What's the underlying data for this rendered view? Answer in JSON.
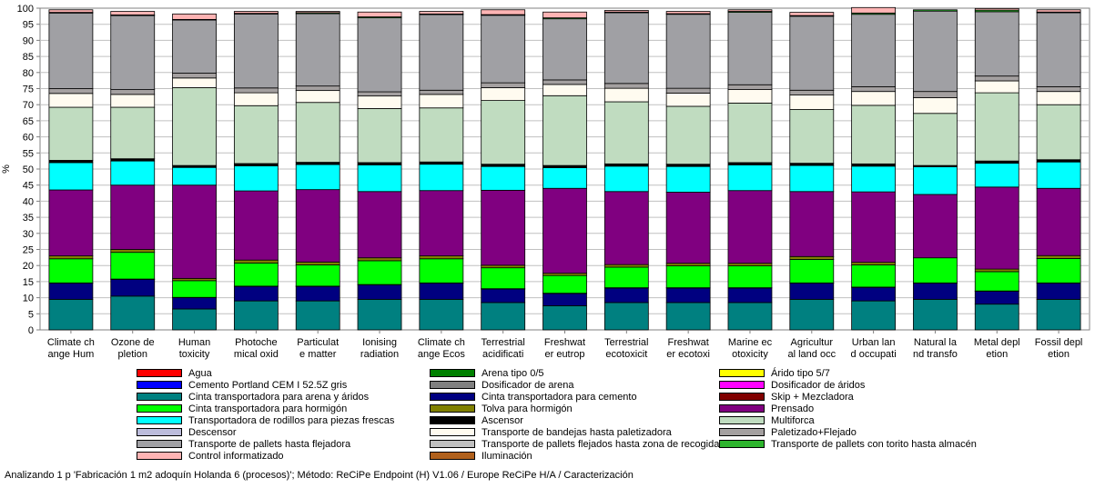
{
  "chart_data": {
    "type": "stacked-bar",
    "ylabel": "%",
    "ylim": [
      0,
      100
    ],
    "yticks": [
      0,
      5,
      10,
      15,
      20,
      25,
      30,
      35,
      40,
      45,
      50,
      55,
      60,
      65,
      70,
      75,
      80,
      85,
      90,
      95,
      100
    ],
    "grid": true,
    "legend_position": "bottom",
    "categories": [
      [
        "Climate ch",
        "ange Hum"
      ],
      [
        "Ozone de",
        "pletion"
      ],
      [
        "Human",
        "toxicity"
      ],
      [
        "Photoche",
        "mical oxid"
      ],
      [
        "Particulat",
        "e matter"
      ],
      [
        "Ionising",
        "radiation"
      ],
      [
        "Climate ch",
        "ange Ecos"
      ],
      [
        "Terrestrial",
        "acidificati"
      ],
      [
        "Freshwat",
        "er eutrop"
      ],
      [
        "Terrestrial",
        "ecotoxicit"
      ],
      [
        "Freshwat",
        "er ecotoxi"
      ],
      [
        "Marine ec",
        "otoxicity"
      ],
      [
        "Agricultur",
        "al land occ"
      ],
      [
        "Urban lan",
        "d occupati"
      ],
      [
        "Natural la",
        "nd transfo"
      ],
      [
        "Metal depl",
        "etion"
      ],
      [
        "Fossil depl",
        "etion"
      ]
    ],
    "series": [
      {
        "name": "Agua",
        "color": "#ff0000",
        "values": [
          0,
          0,
          0,
          0,
          0,
          0,
          0,
          0,
          0,
          0,
          0,
          0,
          0,
          0,
          0,
          0,
          0
        ]
      },
      {
        "name": "Arena tipo 0/5",
        "color": "#008000",
        "values": [
          0,
          0,
          0,
          0,
          0,
          0,
          0,
          0,
          0,
          0,
          0,
          0,
          0,
          0,
          0,
          0,
          0
        ]
      },
      {
        "name": "Árido tipo 5/7",
        "color": "#ffff00",
        "values": [
          0,
          0,
          0,
          0,
          0,
          0,
          0,
          0,
          0,
          0,
          0,
          0,
          0,
          0,
          0,
          0,
          0
        ]
      },
      {
        "name": "Cemento Portland CEM I 52.5Z gris",
        "color": "#0000ff",
        "values": [
          0,
          0,
          0,
          0,
          0,
          0,
          0,
          0,
          0,
          0,
          0,
          0,
          0,
          0,
          0,
          0,
          0
        ]
      },
      {
        "name": "Dosificador de arena",
        "color": "#808080",
        "values": [
          0,
          0,
          0,
          0,
          0,
          0,
          0,
          0,
          0,
          0,
          0,
          0,
          0,
          0,
          0,
          0,
          0
        ]
      },
      {
        "name": "Dosificador de áridos",
        "color": "#ff00ff",
        "values": [
          0,
          0,
          0,
          0,
          0,
          0,
          0,
          0,
          0,
          0,
          0,
          0,
          0,
          0,
          0,
          0,
          0
        ]
      },
      {
        "name": "Cinta transportadora para arena y áridos",
        "color": "#008080",
        "values": [
          9.5,
          10.5,
          6.5,
          9,
          9,
          9.5,
          9.5,
          8.5,
          7.5,
          8.5,
          8.5,
          8.5,
          9.5,
          9,
          9.5,
          8,
          9.5
        ]
      },
      {
        "name": "Cinta transportadora para cemento",
        "color": "#000080",
        "values": [
          5,
          5.2,
          3.5,
          4.5,
          4.5,
          4.5,
          5,
          4.2,
          3.8,
          4.5,
          4.5,
          4.5,
          5,
          4.2,
          5,
          4,
          5
        ]
      },
      {
        "name": "Skip + Mezcladora",
        "color": "#800000",
        "values": [
          0.1,
          0.1,
          0.1,
          0.1,
          0.1,
          0.1,
          0.1,
          0.1,
          0.1,
          0.1,
          0.1,
          0.1,
          0.1,
          0.1,
          0.1,
          0.1,
          0.1
        ]
      },
      {
        "name": "Cinta transportadora para hormigón",
        "color": "#00ff00",
        "values": [
          7.5,
          8.3,
          5.2,
          7.2,
          6.6,
          7.4,
          7.5,
          6.5,
          5.5,
          6.4,
          6.8,
          6.8,
          7.3,
          6.9,
          7.8,
          6,
          7.6
        ]
      },
      {
        "name": "Tolva para hormigón",
        "color": "#808000",
        "values": [
          0.9,
          0.9,
          0.7,
          0.9,
          0.9,
          0.9,
          0.9,
          0.8,
          0.7,
          0.8,
          0.8,
          0.8,
          0.9,
          0.8,
          0,
          0.8,
          0.9
        ]
      },
      {
        "name": "Prensado",
        "color": "#800080",
        "values": [
          20.5,
          20,
          29,
          21.5,
          22.5,
          20.6,
          20.3,
          23.3,
          26.4,
          22.7,
          22.1,
          22.6,
          20.2,
          21.9,
          19.7,
          25.5,
          20.9
        ]
      },
      {
        "name": "Transportadora de rodillos para piezas frescas",
        "color": "#00ffff",
        "values": [
          8.5,
          7.5,
          5.5,
          7.8,
          7.8,
          8.3,
          8.2,
          7.4,
          6.4,
          7.9,
          8,
          8,
          8.1,
          8,
          8.6,
          7.4,
          8.2
        ]
      },
      {
        "name": "Ascensor",
        "color": "#000000",
        "values": [
          0.7,
          0.7,
          0.6,
          0.7,
          0.7,
          0.7,
          0.7,
          0.7,
          0.7,
          0.7,
          0.7,
          0.7,
          0.7,
          0.7,
          0.4,
          0.7,
          0.7
        ]
      },
      {
        "name": "Multiforca",
        "color": "#c0dcc0",
        "values": [
          16.5,
          16,
          24.2,
          18,
          18.6,
          16.8,
          16.8,
          19.8,
          21.7,
          19.3,
          18,
          18.5,
          16.7,
          18.2,
          16.2,
          21.2,
          17.1
        ]
      },
      {
        "name": "Descensor",
        "color": "#bcbcdc",
        "values": [
          0,
          0,
          0,
          0,
          0,
          0,
          0,
          0,
          0,
          0,
          0,
          0,
          0,
          0,
          0,
          0,
          0
        ]
      },
      {
        "name": "Transporte de bandejas hasta paletizadora",
        "color": "#fffbf0",
        "values": [
          4.3,
          4,
          3,
          4,
          3.7,
          3.9,
          4.2,
          4,
          3.5,
          4.2,
          4.1,
          4.2,
          4.5,
          4.3,
          4.9,
          3.7,
          4.1
        ]
      },
      {
        "name": "Paletizado+Flejado",
        "color": "#a4a0a0",
        "values": [
          1.5,
          1.5,
          1.5,
          1.5,
          1.4,
          1.3,
          1.3,
          1.5,
          1.4,
          1.5,
          1.5,
          1.5,
          1.5,
          1.5,
          1.9,
          1.5,
          1.5
        ]
      },
      {
        "name": "Transporte de pallets hasta flejadora",
        "color": "#a0a0a4",
        "values": [
          23.5,
          23,
          16.5,
          23,
          22.5,
          23,
          23.5,
          21,
          19,
          22,
          23,
          22.5,
          23,
          22.5,
          25,
          20,
          23
        ]
      },
      {
        "name": "Transporte de pallets flejados hasta zona de recogida",
        "color": "#c0c0c0",
        "values": [
          0,
          0,
          0,
          0,
          0,
          0,
          0,
          0,
          0,
          0,
          0,
          0,
          0,
          0,
          0,
          0,
          0
        ]
      },
      {
        "name": "Transporte de pallets con torito hasta almacén",
        "color": "#2db52d",
        "values": [
          0.2,
          0.2,
          0.2,
          0.2,
          0.3,
          0.3,
          0.2,
          0.2,
          0.3,
          0.2,
          0.2,
          0.3,
          0.2,
          0.4,
          0.4,
          0.5,
          0.2
        ]
      },
      {
        "name": "Control informatizado",
        "color": "#ffb4b4",
        "values": [
          0.8,
          1.1,
          1.7,
          0.6,
          0.4,
          1.5,
          0.8,
          1.5,
          1.8,
          0.5,
          0.7,
          0.5,
          1,
          1.7,
          0,
          0.5,
          0.7
        ]
      },
      {
        "name": "Iluminación",
        "color": "#b0601c",
        "values": [
          0,
          0,
          0,
          0,
          0,
          0,
          0,
          0,
          0,
          0,
          0,
          0,
          0,
          0,
          0,
          0,
          0
        ]
      }
    ]
  },
  "legend": [
    {
      "label": "Agua",
      "color": "#ff0000"
    },
    {
      "label": "Arena tipo 0/5",
      "color": "#008000"
    },
    {
      "label": "Árido tipo 5/7",
      "color": "#ffff00"
    },
    {
      "label": "Cemento Portland CEM I 52.5Z gris",
      "color": "#0000ff"
    },
    {
      "label": "Dosificador de arena",
      "color": "#808080"
    },
    {
      "label": "Dosificador de áridos",
      "color": "#ff00ff"
    },
    {
      "label": "Cinta transportadora para arena y áridos",
      "color": "#008080"
    },
    {
      "label": "Cinta transportadora para cemento",
      "color": "#000080"
    },
    {
      "label": "Skip + Mezcladora",
      "color": "#800000"
    },
    {
      "label": "Cinta transportadora para hormigón",
      "color": "#00ff00"
    },
    {
      "label": "Tolva para hormigón",
      "color": "#808000"
    },
    {
      "label": "Prensado",
      "color": "#800080"
    },
    {
      "label": "Transportadora de rodillos para piezas frescas",
      "color": "#00ffff"
    },
    {
      "label": "Ascensor",
      "color": "#000000"
    },
    {
      "label": "Multiforca",
      "color": "#c0dcc0"
    },
    {
      "label": "Descensor",
      "color": "#bcbcdc"
    },
    {
      "label": "Transporte de bandejas hasta paletizadora",
      "color": "#fffbf0"
    },
    {
      "label": "Paletizado+Flejado",
      "color": "#a4a0a0"
    },
    {
      "label": "Transporte de pallets hasta flejadora",
      "color": "#a0a0a4"
    },
    {
      "label": "Transporte de pallets flejados hasta zona de recogida",
      "color": "#c0c0c0"
    },
    {
      "label": "Transporte de pallets con torito hasta almacén",
      "color": "#2db52d"
    },
    {
      "label": "Control informatizado",
      "color": "#ffb4b4"
    },
    {
      "label": "Iluminación",
      "color": "#b0601c"
    }
  ],
  "status": {
    "text": "Analizando 1 p 'Fabricación 1 m2 adoquín Holanda 6 (procesos)';  Método: ReCiPe Endpoint (H) V1.06 / Europe ReCiPe H/A / Caracterización"
  }
}
